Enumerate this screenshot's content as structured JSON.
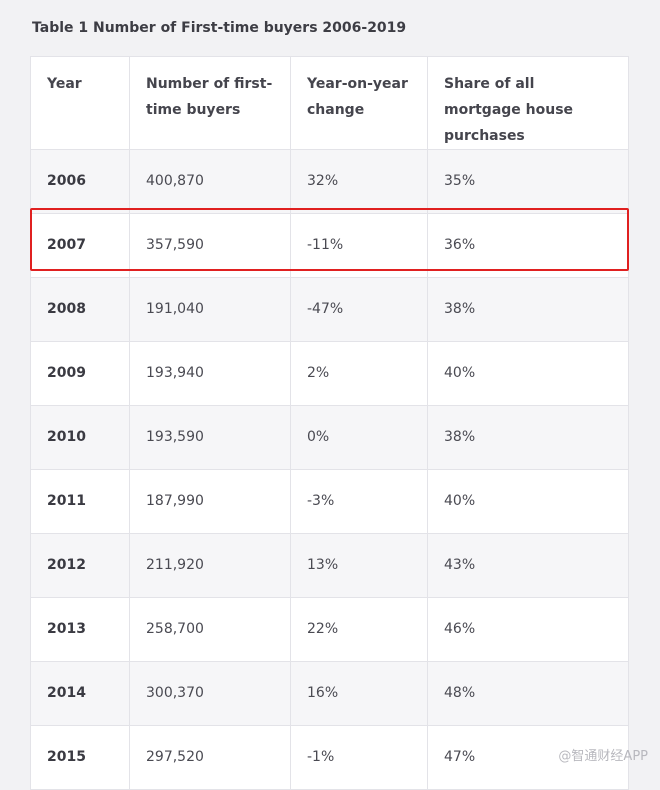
{
  "chart_data": {
    "type": "table",
    "title": "Table 1 Number of First-time buyers 2006-2019",
    "columns": [
      "Year",
      "Number of first-time buyers",
      "Year-on-year change",
      "Share of all mortgage house purchases"
    ],
    "rows": [
      [
        "2006",
        "400,870",
        "32%",
        "35%"
      ],
      [
        "2007",
        "357,590",
        "-11%",
        "36%"
      ],
      [
        "2008",
        "191,040",
        "-47%",
        "38%"
      ],
      [
        "2009",
        "193,940",
        "2%",
        "40%"
      ],
      [
        "2010",
        "193,590",
        "0%",
        "38%"
      ],
      [
        "2011",
        "187,990",
        "-3%",
        "40%"
      ],
      [
        "2012",
        "211,920",
        "13%",
        "43%"
      ],
      [
        "2013",
        "258,700",
        "22%",
        "46%"
      ],
      [
        "2014",
        "300,370",
        "16%",
        "48%"
      ],
      [
        "2015",
        "297,520",
        "-1%",
        "47%"
      ]
    ],
    "highlighted_row": "2007",
    "colors": {
      "highlight": "#e02020",
      "row_alt": "#f6f6f8",
      "background": "#f2f2f4"
    }
  },
  "watermark": "@智通财经APP"
}
